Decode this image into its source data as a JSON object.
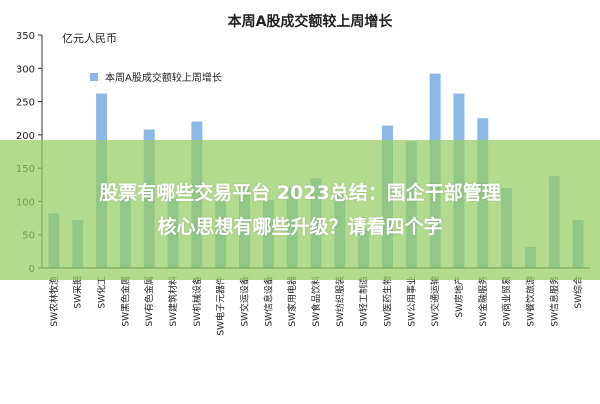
{
  "chart_data": {
    "type": "bar",
    "title": "本周A股成交额较上周增长",
    "ylabel": "亿元人民币",
    "xlabel": "",
    "ylim": [
      0,
      350
    ],
    "yticks": [
      0,
      50,
      100,
      150,
      200,
      250,
      300,
      350
    ],
    "grid": false,
    "legend_position": "top-left",
    "bar_color": "#8cb8e6",
    "categories": [
      "SW农林牧渔",
      "SW采掘",
      "SW化工",
      "SW黑色金属",
      "SW有色金属",
      "SW建筑材料",
      "SW机械设备",
      "SW电子元器件",
      "SW交运设备",
      "SW信息设备",
      "SW家用电器",
      "SW食品饮料",
      "SW纺织服装",
      "SW轻工制造",
      "SW医药生物",
      "SW公用事业",
      "SW交通运输",
      "SW房地产",
      "SW金融服务",
      "SW商业贸易",
      "SW餐饮旅游",
      "SW信息服务",
      "SW综合"
    ],
    "series": [
      {
        "name": "本周A股成交额较上周增长",
        "values": [
          82,
          72,
          262,
          105,
          208,
          105,
          220,
          100,
          123,
          102,
          120,
          135,
          110,
          60,
          214,
          190,
          292,
          262,
          225,
          120,
          32,
          138,
          72
        ]
      }
    ]
  },
  "overlay": {
    "line1": "股票有哪些交易平台 2023总结：国企干部管理",
    "line2": "核心思想有哪些升级？请看四个字"
  }
}
